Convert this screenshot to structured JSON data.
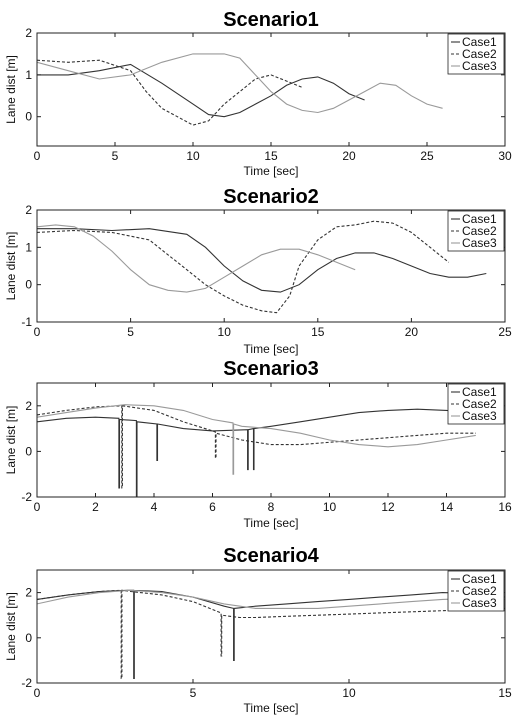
{
  "chart_data": [
    {
      "type": "line",
      "title": "Scenario1",
      "xlabel": "Time [sec]",
      "ylabel": "Lane dist [m]",
      "xlim": [
        0,
        30
      ],
      "ylim": [
        -0.7,
        2
      ],
      "xticks": [
        0,
        5,
        10,
        15,
        20,
        25,
        30
      ],
      "yticks": [
        0,
        1,
        2
      ],
      "grid": false,
      "legend_position": "top-right",
      "series": [
        {
          "name": "Case1",
          "style": "solid",
          "color": "#333333",
          "x": [
            0,
            2,
            4,
            6,
            8,
            10,
            11,
            12,
            13,
            14,
            15,
            16,
            17,
            18,
            19,
            20,
            21
          ],
          "y": [
            1.0,
            1.0,
            1.1,
            1.25,
            0.8,
            0.3,
            0.05,
            0.0,
            0.1,
            0.3,
            0.5,
            0.75,
            0.9,
            0.95,
            0.8,
            0.55,
            0.4
          ]
        },
        {
          "name": "Case2",
          "style": "dashed",
          "color": "#333333",
          "x": [
            0,
            2,
            4,
            6,
            7,
            8,
            9,
            10,
            11,
            12,
            13,
            14,
            15,
            16,
            17
          ],
          "y": [
            1.35,
            1.3,
            1.35,
            1.1,
            0.6,
            0.2,
            0.0,
            -0.2,
            -0.1,
            0.3,
            0.6,
            0.9,
            1.0,
            0.85,
            0.7
          ]
        },
        {
          "name": "Case3",
          "style": "solid",
          "color": "#9a9a9a",
          "x": [
            0,
            2,
            4,
            6,
            8,
            10,
            12,
            13,
            14,
            15,
            16,
            17,
            18,
            19,
            20,
            21,
            22,
            23,
            24,
            25,
            26
          ],
          "y": [
            1.3,
            1.1,
            0.9,
            1.0,
            1.3,
            1.5,
            1.5,
            1.4,
            1.0,
            0.6,
            0.3,
            0.15,
            0.1,
            0.2,
            0.4,
            0.6,
            0.8,
            0.75,
            0.5,
            0.3,
            0.2
          ]
        }
      ]
    },
    {
      "type": "line",
      "title": "Scenario2",
      "xlabel": "Time [sec]",
      "ylabel": "Lane dist [m]",
      "xlim": [
        0,
        25
      ],
      "ylim": [
        -1,
        2
      ],
      "xticks": [
        0,
        5,
        10,
        15,
        20,
        25
      ],
      "yticks": [
        -1,
        0,
        1,
        2
      ],
      "grid": false,
      "legend_position": "top-right",
      "series": [
        {
          "name": "Case1",
          "style": "solid",
          "color": "#333333",
          "x": [
            0,
            2,
            4,
            6,
            8,
            9,
            10,
            11,
            12,
            13,
            14,
            15,
            16,
            17,
            18,
            19,
            20,
            21,
            22,
            23,
            24
          ],
          "y": [
            1.5,
            1.5,
            1.45,
            1.5,
            1.35,
            1.0,
            0.5,
            0.1,
            -0.15,
            -0.2,
            0.0,
            0.4,
            0.7,
            0.85,
            0.85,
            0.7,
            0.5,
            0.3,
            0.2,
            0.2,
            0.3
          ]
        },
        {
          "name": "Case2",
          "style": "dashed",
          "color": "#333333",
          "x": [
            0,
            2,
            4,
            6,
            7,
            8,
            9,
            10,
            11,
            12,
            12.8,
            13.5,
            14,
            15,
            16,
            17,
            18,
            19,
            20,
            21,
            22
          ],
          "y": [
            1.4,
            1.45,
            1.4,
            1.2,
            0.8,
            0.4,
            0.0,
            -0.3,
            -0.55,
            -0.7,
            -0.75,
            -0.3,
            0.5,
            1.2,
            1.55,
            1.6,
            1.7,
            1.65,
            1.4,
            1.0,
            0.6
          ]
        },
        {
          "name": "Case3",
          "style": "solid",
          "color": "#9a9a9a",
          "x": [
            0,
            1,
            2,
            3,
            4,
            5,
            6,
            7,
            8,
            9,
            10,
            11,
            12,
            13,
            14,
            15,
            16,
            17
          ],
          "y": [
            1.55,
            1.6,
            1.55,
            1.3,
            0.9,
            0.4,
            0.0,
            -0.15,
            -0.2,
            -0.1,
            0.2,
            0.5,
            0.8,
            0.95,
            0.95,
            0.8,
            0.6,
            0.4
          ]
        }
      ]
    },
    {
      "type": "line",
      "title": "Scenario3",
      "xlabel": "Time [sec]",
      "ylabel": "Lane dist [m]",
      "xlim": [
        0,
        16
      ],
      "ylim": [
        -2,
        3
      ],
      "xticks": [
        0,
        2,
        4,
        6,
        8,
        10,
        12,
        14,
        16
      ],
      "yticks": [
        -2,
        0,
        2
      ],
      "grid": false,
      "legend_position": "top-right",
      "series": [
        {
          "name": "Case1",
          "style": "solid",
          "color": "#333333",
          "x": [
            0,
            1,
            2,
            2.8,
            2.8,
            2.82,
            2.82,
            3.4,
            3.4,
            3.42,
            3.42,
            4.1,
            4.1,
            4.12,
            4.12,
            5,
            6,
            7.2,
            7.2,
            7.22,
            7.22,
            7.4,
            7.4,
            7.42,
            7.42,
            8,
            9,
            10,
            11,
            12,
            13,
            14,
            15
          ],
          "y": [
            1.3,
            1.45,
            1.5,
            1.45,
            -1.6,
            -1.6,
            1.4,
            1.35,
            -2.0,
            -2.0,
            1.3,
            1.2,
            -0.4,
            -0.4,
            1.2,
            1.0,
            0.9,
            0.95,
            -0.8,
            -0.8,
            0.95,
            1.0,
            -0.8,
            -0.8,
            1.0,
            1.1,
            1.3,
            1.5,
            1.7,
            1.8,
            1.85,
            1.8,
            1.7
          ]
        },
        {
          "name": "Case2",
          "style": "dashed",
          "color": "#333333",
          "x": [
            0,
            1,
            2,
            2.9,
            2.9,
            2.92,
            2.92,
            4,
            5,
            6,
            6.1,
            6.1,
            6.12,
            6.12,
            7,
            8,
            9,
            10,
            11,
            12,
            13,
            14,
            15
          ],
          "y": [
            1.6,
            1.8,
            1.95,
            2.0,
            -1.6,
            -1.6,
            2.0,
            1.8,
            1.3,
            0.9,
            0.85,
            -0.3,
            -0.3,
            0.8,
            0.5,
            0.3,
            0.3,
            0.4,
            0.5,
            0.6,
            0.7,
            0.8,
            0.8
          ]
        },
        {
          "name": "Case3",
          "style": "solid",
          "color": "#9a9a9a",
          "x": [
            0,
            1,
            2,
            3,
            4,
            5,
            6,
            6.7,
            6.7,
            6.72,
            6.72,
            7,
            8,
            9,
            10,
            11,
            12,
            13,
            14,
            15
          ],
          "y": [
            1.5,
            1.7,
            1.9,
            2.05,
            2.0,
            1.8,
            1.4,
            1.25,
            -1.0,
            -1.0,
            1.2,
            1.1,
            1.0,
            0.8,
            0.5,
            0.3,
            0.2,
            0.3,
            0.5,
            0.7
          ]
        }
      ]
    },
    {
      "type": "line",
      "title": "Scenario4",
      "xlabel": "Time [sec]",
      "ylabel": "Lane dist [m]",
      "xlim": [
        0,
        15
      ],
      "ylim": [
        -2,
        3
      ],
      "xticks": [
        0,
        5,
        10,
        15
      ],
      "yticks": [
        -2,
        0,
        2
      ],
      "grid": false,
      "legend_position": "top-right",
      "series": [
        {
          "name": "Case1",
          "style": "solid",
          "color": "#333333",
          "x": [
            0,
            1,
            2,
            2.9,
            3.1,
            3.1,
            3.12,
            3.12,
            4,
            5,
            6,
            6.3,
            6.3,
            6.32,
            6.32,
            7,
            8,
            9,
            10,
            11,
            12,
            13,
            14,
            15
          ],
          "y": [
            1.7,
            1.9,
            2.05,
            2.1,
            2.1,
            -1.8,
            -1.8,
            2.1,
            2.05,
            1.8,
            1.4,
            1.3,
            -1.0,
            -1.0,
            1.3,
            1.4,
            1.5,
            1.6,
            1.7,
            1.8,
            1.9,
            2.0,
            1.95,
            1.8
          ]
        },
        {
          "name": "Case2",
          "style": "dashed",
          "color": "#333333",
          "x": [
            0,
            1,
            2,
            2.7,
            2.7,
            2.72,
            2.72,
            3,
            4,
            5,
            5.9,
            5.9,
            5.92,
            5.92,
            6.5,
            7,
            8,
            9,
            10,
            11,
            12,
            13,
            14,
            15
          ],
          "y": [
            1.7,
            1.9,
            2.05,
            2.1,
            -1.8,
            -1.8,
            2.1,
            2.05,
            1.9,
            1.6,
            1.1,
            -0.8,
            -0.8,
            1.0,
            0.9,
            0.9,
            0.95,
            1.0,
            1.05,
            1.1,
            1.15,
            1.2,
            1.25,
            1.3
          ]
        },
        {
          "name": "Case3",
          "style": "solid",
          "color": "#9a9a9a",
          "x": [
            0,
            1,
            2,
            3,
            4,
            5,
            6,
            7,
            8,
            9,
            10,
            11,
            12,
            13,
            14,
            15
          ],
          "y": [
            1.5,
            1.8,
            2.0,
            2.1,
            2.0,
            1.8,
            1.5,
            1.3,
            1.3,
            1.3,
            1.4,
            1.5,
            1.6,
            1.7,
            1.75,
            1.7
          ]
        }
      ]
    }
  ]
}
